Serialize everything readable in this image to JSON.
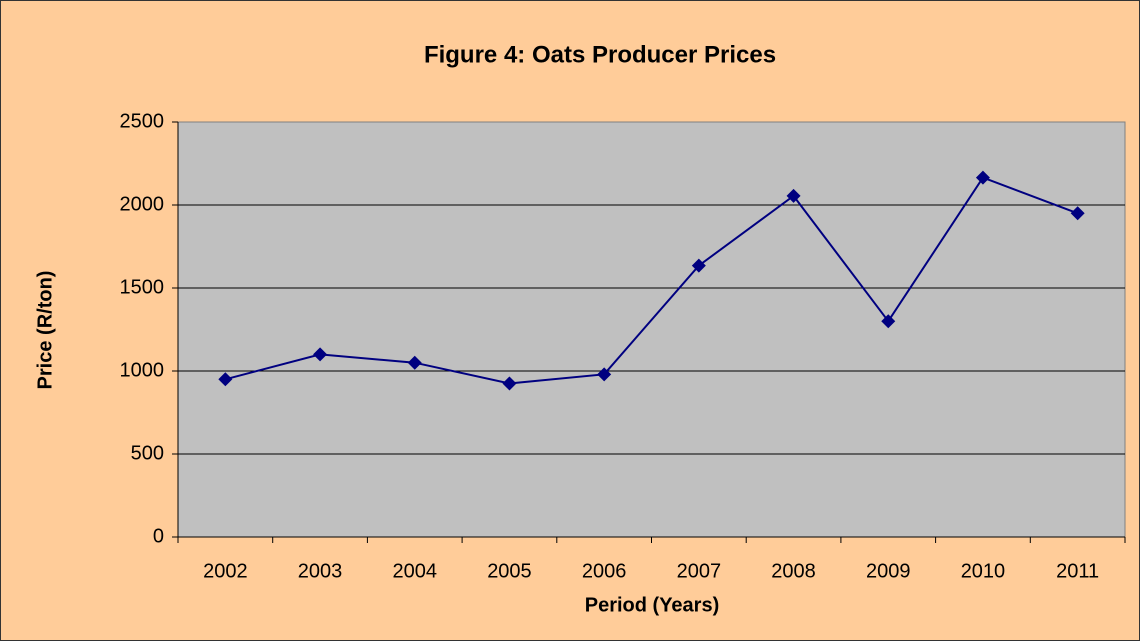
{
  "chart_data": {
    "type": "line",
    "title": "Figure 4: Oats Producer Prices",
    "x_label": "Period (Years)",
    "y_label": "Price (R/ton)",
    "categories": [
      "2002",
      "2003",
      "2004",
      "2005",
      "2006",
      "2007",
      "2008",
      "2009",
      "2010",
      "2011"
    ],
    "values": [
      950,
      1100,
      1050,
      925,
      980,
      1635,
      2055,
      1300,
      2165,
      1950
    ],
    "color": "#000080",
    "ylim": [
      0,
      2500
    ],
    "yticks": [
      0,
      500,
      1000,
      1500,
      2000,
      2500
    ],
    "grid": true
  }
}
